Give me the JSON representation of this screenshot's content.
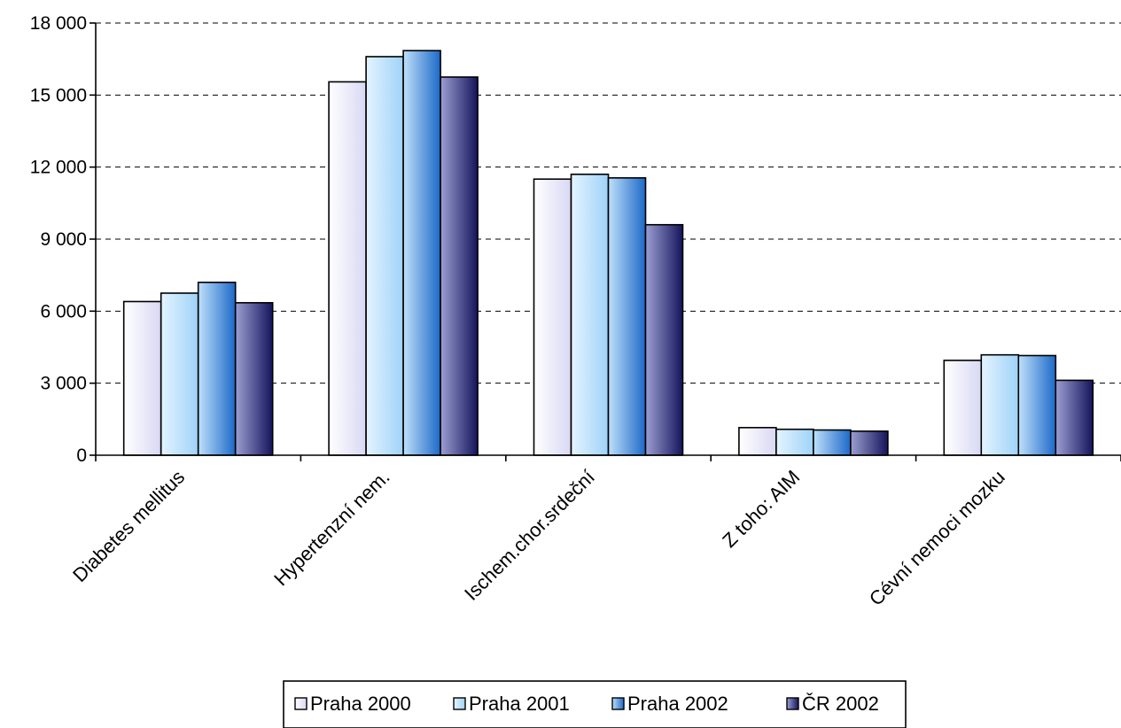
{
  "chart_data": {
    "type": "bar",
    "categories": [
      "Diabetes mellitus",
      "Hypertenzní nem.",
      "Ischem.chor.srdeční",
      "Z toho: AIM",
      "Cévní nemoci mozku"
    ],
    "series": [
      {
        "name": "Praha 2000",
        "values": [
          6400,
          15550,
          11500,
          1150,
          3950
        ]
      },
      {
        "name": "Praha 2001",
        "values": [
          6750,
          16600,
          11700,
          1080,
          4180
        ]
      },
      {
        "name": "Praha 2002",
        "values": [
          7200,
          16850,
          11550,
          1050,
          4150
        ]
      },
      {
        "name": "ČR 2002",
        "values": [
          6350,
          15750,
          9600,
          1000,
          3120
        ]
      }
    ],
    "ylim": [
      0,
      18000
    ],
    "yticks": [
      0,
      3000,
      6000,
      9000,
      12000,
      15000,
      18000
    ],
    "ytick_labels": [
      "0",
      "3 000",
      "6 000",
      "9 000",
      "12 000",
      "15 000",
      "18 000"
    ],
    "grid": "horizontal dashed",
    "legend_position": "bottom"
  },
  "colors": {
    "series_gradients": [
      [
        "#ffffff",
        "#d8d8f4"
      ],
      [
        "#e4f4ff",
        "#9fd2f8"
      ],
      [
        "#bfe0fb",
        "#1c69c8"
      ],
      [
        "#9c9fd2",
        "#14145c"
      ]
    ],
    "axis": "#000000",
    "grid": "#000000"
  }
}
